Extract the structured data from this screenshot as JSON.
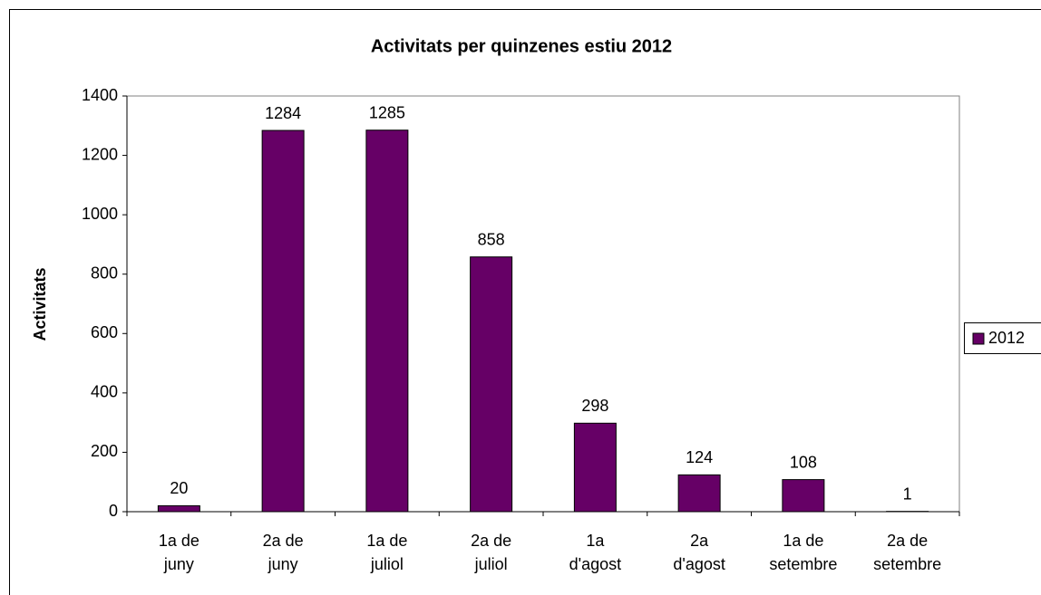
{
  "chart_data": {
    "type": "bar",
    "title": "Activitats per quinzenes estiu 2012",
    "y_label": "Activitats",
    "categories": [
      "1a de\njuny",
      "2a de\njuny",
      "1a de\njuliol",
      "2a de\njuliol",
      "1a\nd'agost",
      "2a\nd'agost",
      "1a de\nsetembre",
      "2a de\nsetembre"
    ],
    "series": [
      {
        "name": "2012",
        "color": "#660066",
        "values": [
          20,
          1284,
          1285,
          858,
          298,
          124,
          108,
          1
        ]
      }
    ],
    "ylim": [
      0,
      1400
    ],
    "yticks": [
      0,
      200,
      400,
      600,
      800,
      1000,
      1200,
      1400
    ],
    "grid": false,
    "legend": "right"
  }
}
